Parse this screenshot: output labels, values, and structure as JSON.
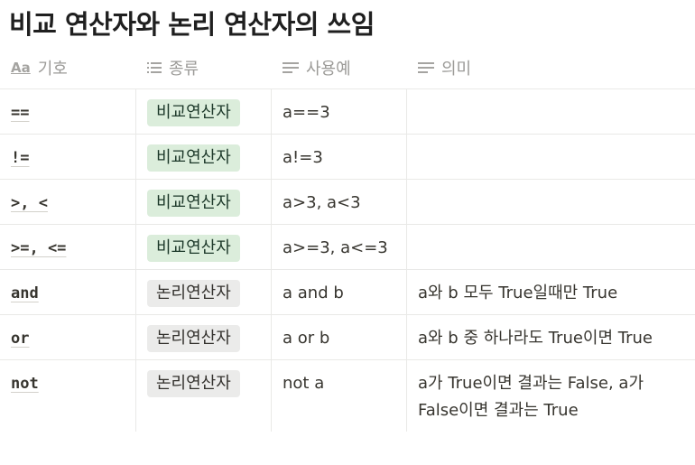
{
  "page": {
    "title": "비교 연산자와 논리 연산자의 쓰임"
  },
  "columns": [
    {
      "icon": "text-property-icon",
      "label": "기호"
    },
    {
      "icon": "list-icon",
      "label": "종류"
    },
    {
      "icon": "text-lines-icon",
      "label": "사용예"
    },
    {
      "icon": "text-lines-icon",
      "label": "의미"
    }
  ],
  "rows": [
    {
      "symbol": "==",
      "kind": "비교연산자",
      "usage": "a==3",
      "meaning": ""
    },
    {
      "symbol": "!=",
      "kind": "비교연산자",
      "usage": "a!=3",
      "meaning": ""
    },
    {
      "symbol": ">, <",
      "kind": "비교연산자",
      "usage": "a>3, a<3",
      "meaning": ""
    },
    {
      "symbol": ">=, <=",
      "kind": "비교연산자",
      "usage": "a>=3, a<=3",
      "meaning": ""
    },
    {
      "symbol": "and",
      "kind": "논리연산자",
      "usage": "a and b",
      "meaning": "a와 b 모두 True일때만 True"
    },
    {
      "symbol": "or",
      "kind": "논리연산자",
      "usage": "a or b",
      "meaning": "a와 b 중 하나라도 True이면 True"
    },
    {
      "symbol": "not",
      "kind": "논리연산자",
      "usage": "not a",
      "meaning": "a가 True이면 결과는 False, a가 False이면 결과는 True"
    }
  ],
  "colors": {
    "tag_compare": "#dbeddb",
    "tag_logic": "#ebebea"
  }
}
